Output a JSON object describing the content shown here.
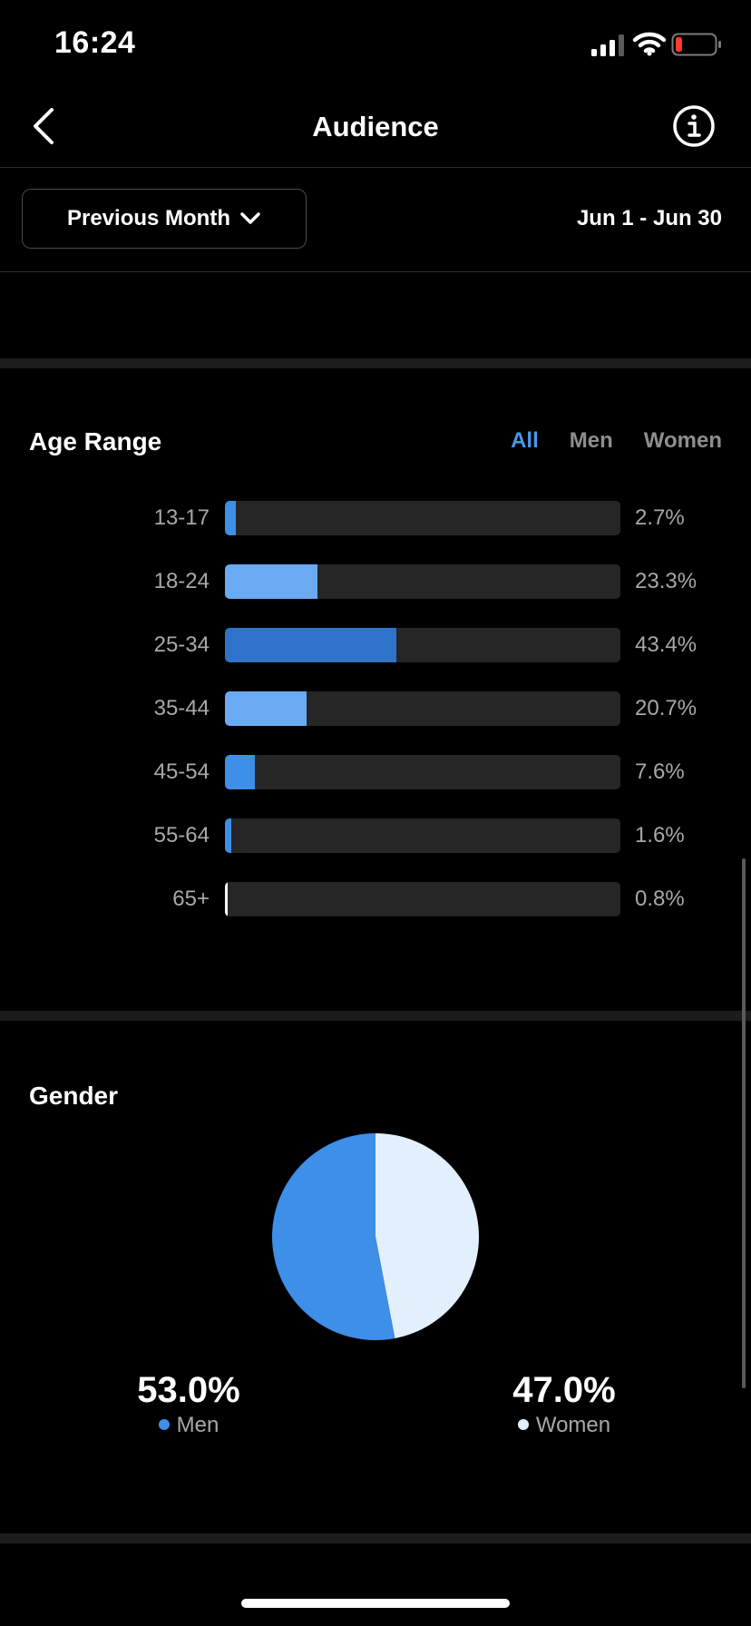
{
  "status_bar": {
    "time": "16:24"
  },
  "nav": {
    "title": "Audience"
  },
  "filter": {
    "period_label": "Previous Month",
    "date_range": "Jun 1 - Jun 30"
  },
  "age_range": {
    "title": "Age Range",
    "tabs": [
      {
        "label": "All",
        "active": true
      },
      {
        "label": "Men",
        "active": false
      },
      {
        "label": "Women",
        "active": false
      }
    ],
    "rows": [
      {
        "label": "13-17",
        "value_text": "2.7%"
      },
      {
        "label": "18-24",
        "value_text": "23.3%"
      },
      {
        "label": "25-34",
        "value_text": "43.4%"
      },
      {
        "label": "35-44",
        "value_text": "20.7%"
      },
      {
        "label": "45-54",
        "value_text": "7.6%"
      },
      {
        "label": "55-64",
        "value_text": "1.6%"
      },
      {
        "label": "65+",
        "value_text": "0.8%"
      }
    ]
  },
  "gender": {
    "title": "Gender",
    "men": {
      "pct_text": "53.0%",
      "label": "Men",
      "color": "#3d8fe8"
    },
    "women": {
      "pct_text": "47.0%",
      "label": "Women",
      "color": "#e2f0fd"
    }
  },
  "chart_data": [
    {
      "type": "bar",
      "orientation": "horizontal",
      "title": "Age Range",
      "categories": [
        "13-17",
        "18-24",
        "25-34",
        "35-44",
        "45-54",
        "55-64",
        "65+"
      ],
      "values": [
        2.7,
        23.3,
        43.4,
        20.7,
        7.6,
        1.6,
        0.8
      ],
      "value_unit": "%",
      "xlim": [
        0,
        100
      ],
      "colors": [
        "#3d8fe8",
        "#6aaaf2",
        "#2f72c9",
        "#6aaaf2",
        "#3d8fe8",
        "#3d8fe8",
        "#ffffff"
      ],
      "track_color": "#262626"
    },
    {
      "type": "pie",
      "title": "Gender",
      "categories": [
        "Men",
        "Women"
      ],
      "values": [
        53.0,
        47.0
      ],
      "colors": [
        "#3d8fe8",
        "#e2f0fd"
      ]
    }
  ]
}
